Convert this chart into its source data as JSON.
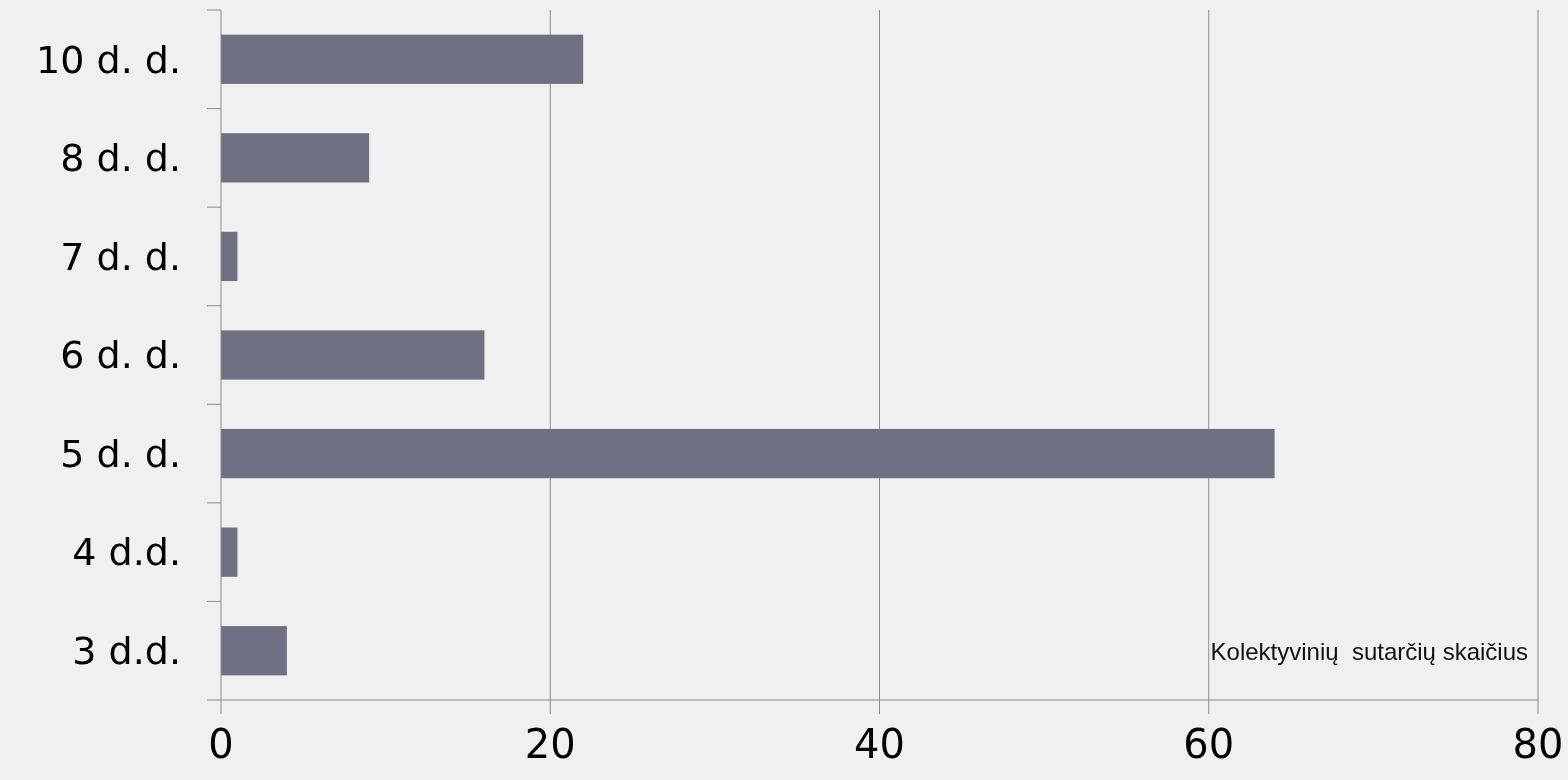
{
  "chart_data": {
    "type": "bar",
    "orientation": "horizontal",
    "categories": [
      "10 d. d.",
      "8 d. d.",
      "7 d. d.",
      "6 d. d.",
      "5 d. d.",
      "4 d.d.",
      "3 d.d."
    ],
    "values": [
      22,
      9,
      1,
      16,
      64,
      1,
      4
    ],
    "color": "#6d7183",
    "xlim": [
      0,
      80
    ],
    "xticks": [
      0,
      20,
      40,
      60,
      80
    ],
    "grid": "x",
    "annotations": [
      "Kolektyvinių  sutarčių skaičius"
    ]
  }
}
